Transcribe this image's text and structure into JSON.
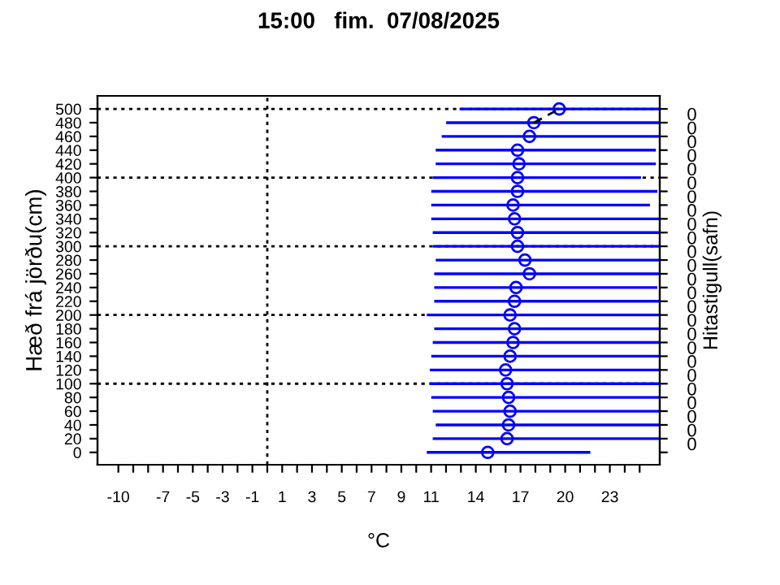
{
  "chart_data": {
    "type": "scatter",
    "title": "15:00   fim.  07/08/2025",
    "xlabel": "°C",
    "ylabel": "Hæð frá jörðu(cm)",
    "y2label": "Hitastigull(safn)",
    "xlim": [
      -11.4,
      26.35
    ],
    "ylim": [
      -18,
      519
    ],
    "annotations": [
      "0",
      "0",
      "0",
      "0",
      "0",
      "0",
      "0",
      "0",
      "0",
      "0",
      "0",
      "0",
      "0",
      "0",
      "0",
      "0",
      "0",
      "0",
      "0",
      "0",
      "0",
      "0",
      "0",
      "0",
      "0"
    ],
    "xticks": [
      {
        "value": -10,
        "label": "-10"
      },
      {
        "value": -9,
        "label": null
      },
      {
        "value": -8,
        "label": null
      },
      {
        "value": -7,
        "label": "-7"
      },
      {
        "value": -6,
        "label": null
      },
      {
        "value": -5,
        "label": "-5"
      },
      {
        "value": -4,
        "label": null
      },
      {
        "value": -3,
        "label": "-3"
      },
      {
        "value": -2,
        "label": null
      },
      {
        "value": -1,
        "label": "-1"
      },
      {
        "value": 0,
        "label": null
      },
      {
        "value": 1,
        "label": "1"
      },
      {
        "value": 2,
        "label": null
      },
      {
        "value": 3,
        "label": "3"
      },
      {
        "value": 4,
        "label": null
      },
      {
        "value": 5,
        "label": "5"
      },
      {
        "value": 6,
        "label": null
      },
      {
        "value": 7,
        "label": "7"
      },
      {
        "value": 8,
        "label": null
      },
      {
        "value": 9,
        "label": "9"
      },
      {
        "value": 10,
        "label": null
      },
      {
        "value": 11,
        "label": "11"
      },
      {
        "value": 12,
        "label": null
      },
      {
        "value": 13,
        "label": null
      },
      {
        "value": 14,
        "label": "14"
      },
      {
        "value": 15,
        "label": null
      },
      {
        "value": 16,
        "label": null
      },
      {
        "value": 17,
        "label": "17"
      },
      {
        "value": 18,
        "label": null
      },
      {
        "value": 19,
        "label": null
      },
      {
        "value": 20,
        "label": "20"
      },
      {
        "value": 21,
        "label": null
      },
      {
        "value": 22,
        "label": null
      },
      {
        "value": 23,
        "label": "23"
      },
      {
        "value": 24,
        "label": null
      },
      {
        "value": 25,
        "label": null
      }
    ],
    "yticks": [
      0,
      20,
      40,
      60,
      80,
      100,
      120,
      140,
      160,
      180,
      200,
      220,
      240,
      260,
      280,
      300,
      320,
      340,
      360,
      380,
      400,
      420,
      440,
      460,
      480,
      500
    ],
    "ref_lines": [
      {
        "axis": "x",
        "value": 0,
        "line_style": "dotted",
        "color": "#000000"
      },
      {
        "axis": "y",
        "value": 100,
        "line_style": "dotted",
        "color": "#000000"
      },
      {
        "axis": "y",
        "value": 200,
        "line_style": "dotted",
        "color": "#000000"
      },
      {
        "axis": "y",
        "value": 300,
        "line_style": "dotted",
        "color": "#000000"
      },
      {
        "axis": "y",
        "value": 400,
        "line_style": "dotted",
        "color": "#000000"
      },
      {
        "axis": "y",
        "value": 500,
        "line_style": "dotted",
        "color": "#000000"
      }
    ],
    "marker": "circle",
    "series": [
      {
        "type": "scatter",
        "color": "#0000ff",
        "x": [
          14.8,
          16.1,
          16.2,
          16.3,
          16.2,
          16.1,
          16.0,
          16.3,
          16.5,
          16.6,
          16.3,
          16.6,
          16.7,
          17.6,
          17.3,
          16.8,
          16.8,
          16.6,
          16.5,
          16.8,
          16.8,
          16.9,
          16.8,
          17.6,
          17.9,
          19.6
        ],
        "values": [
          0,
          20,
          40,
          60,
          80,
          100,
          120,
          140,
          160,
          180,
          200,
          220,
          240,
          260,
          280,
          300,
          320,
          340,
          360,
          380,
          400,
          420,
          440,
          460,
          480,
          500
        ],
        "xerrors": [
          [
            10.8,
            21.6
          ],
          [
            11.2,
            26.3
          ],
          [
            11.4,
            26.3
          ],
          [
            11.2,
            26.3
          ],
          [
            11.1,
            26.3
          ],
          [
            11.0,
            26.3
          ],
          [
            11.0,
            26.3
          ],
          [
            11.1,
            26.3
          ],
          [
            11.2,
            26.3
          ],
          [
            11.3,
            26.3
          ],
          [
            10.8,
            26.2
          ],
          [
            11.3,
            26.3
          ],
          [
            11.3,
            26.1
          ],
          [
            11.3,
            26.3
          ],
          [
            11.4,
            26.3
          ],
          [
            11.2,
            26.3
          ],
          [
            11.2,
            26.3
          ],
          [
            11.1,
            26.3
          ],
          [
            11.1,
            25.6
          ],
          [
            11.1,
            26.1
          ],
          [
            11.2,
            25.0
          ],
          [
            11.4,
            26.0
          ],
          [
            11.4,
            26.0
          ],
          [
            11.8,
            26.3
          ],
          [
            12.1,
            26.3
          ],
          [
            13.0,
            26.3
          ]
        ]
      },
      {
        "type": "line",
        "color": "#000000",
        "line_style": "dashed",
        "marker": "none",
        "x": [
          17.9,
          19.6
        ],
        "values": [
          480,
          500
        ]
      }
    ]
  }
}
